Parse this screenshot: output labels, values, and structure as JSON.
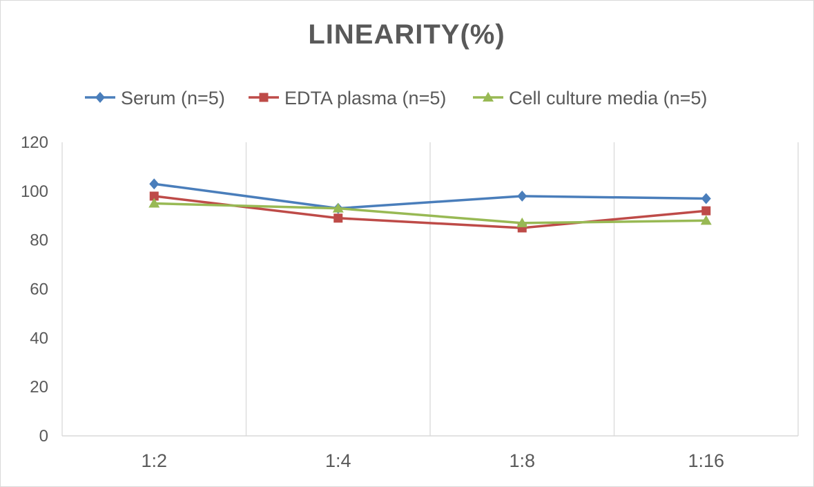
{
  "chart_data": {
    "type": "line",
    "title": "LINEARITY(%)",
    "categories": [
      "1:2",
      "1:4",
      "1:8",
      "1:16"
    ],
    "series": [
      {
        "name": "Serum (n=5)",
        "values": [
          103,
          93,
          98,
          97
        ],
        "color": "#4a7ebb",
        "marker": "diamond"
      },
      {
        "name": "EDTA plasma (n=5)",
        "values": [
          98,
          89,
          85,
          92
        ],
        "color": "#be4b48",
        "marker": "square"
      },
      {
        "name": "Cell culture media (n=5)",
        "values": [
          95,
          93,
          87,
          88
        ],
        "color": "#98b954",
        "marker": "triangle"
      }
    ],
    "yticks": [
      "0",
      "20",
      "40",
      "60",
      "80",
      "100",
      "120"
    ],
    "ylim": [
      0,
      120
    ],
    "xlabel": "",
    "ylabel": "",
    "grid": "vertical",
    "legend": "top"
  }
}
